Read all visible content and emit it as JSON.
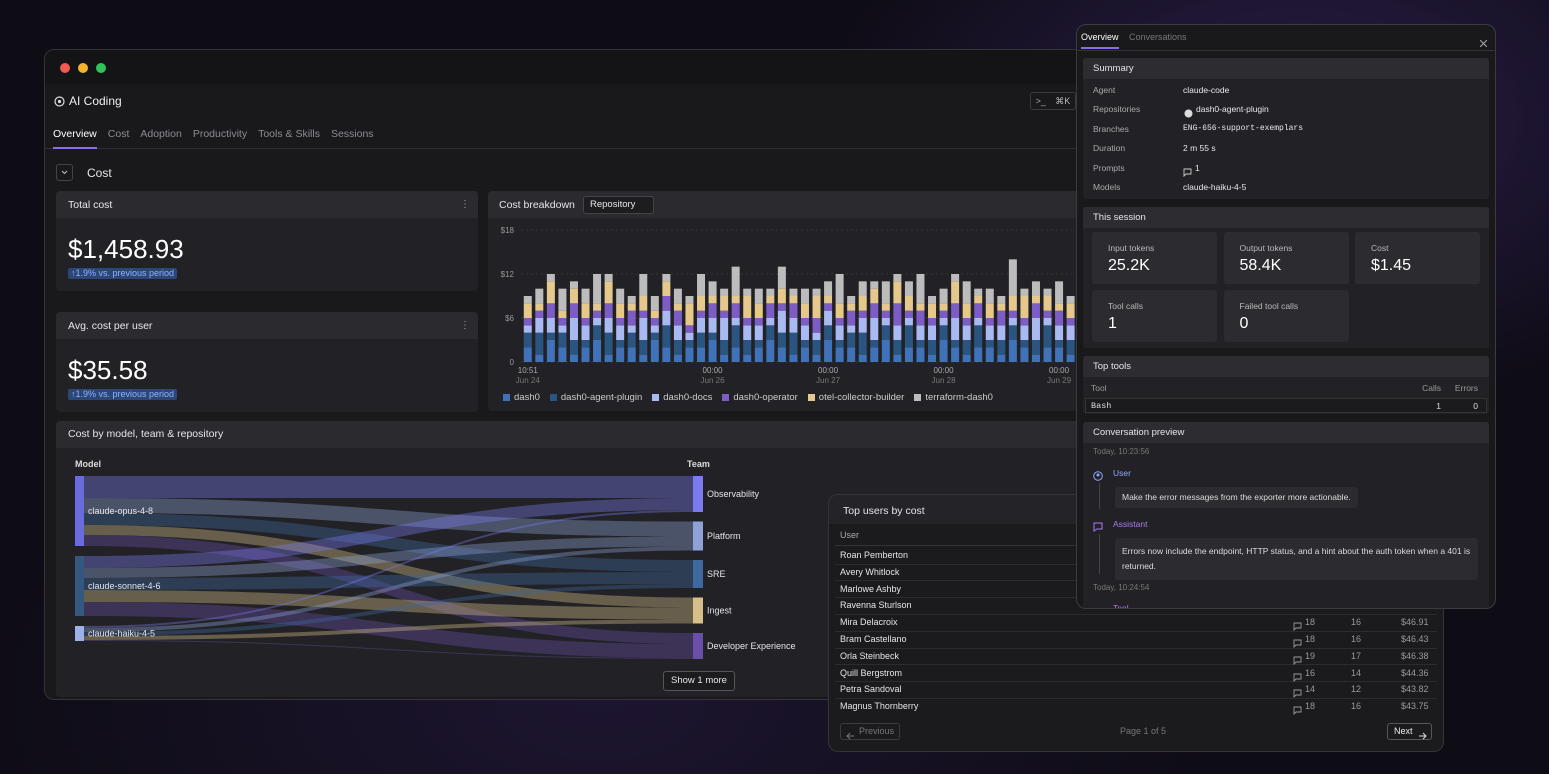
{
  "window": {
    "title": "AI Coding",
    "command_icon": ">_",
    "shortcut": "⌘K",
    "tabs": [
      "Overview",
      "Cost",
      "Adoption",
      "Productivity",
      "Tools & Skills",
      "Sessions"
    ]
  },
  "section": {
    "title": "Cost"
  },
  "kpis": [
    {
      "title": "Total cost",
      "value": "$1,458.93",
      "change": "↑1.9% vs. previous period"
    },
    {
      "title": "Avg. cost per user",
      "value": "$35.58",
      "change": "↑1.9% vs. previous period"
    }
  ],
  "chart_data": [
    {
      "type": "bar",
      "stacked": true,
      "title": "Cost breakdown",
      "group_by": "Repository",
      "categories": [
        {
          "time": "10:51",
          "date": "Jun 24"
        },
        null,
        null,
        null,
        null,
        null,
        null,
        null,
        null,
        null,
        null,
        null,
        null,
        null,
        null,
        null,
        {
          "time": "00:00",
          "date": "Jun 26"
        },
        null,
        null,
        null,
        null,
        null,
        null,
        null,
        null,
        null,
        {
          "time": "00:00",
          "date": "Jun 27"
        },
        null,
        null,
        null,
        null,
        null,
        null,
        null,
        null,
        null,
        {
          "time": "00:00",
          "date": "Jun 28"
        },
        null,
        null,
        null,
        null,
        null,
        null,
        null,
        null,
        null,
        {
          "time": "00:00",
          "date": "Jun 29"
        },
        null
      ],
      "series": [
        {
          "name": "dash0",
          "color": "#3f72b8",
          "values": [
            2,
            1,
            3,
            2,
            1,
            2,
            3,
            1,
            2,
            2,
            1,
            3,
            2,
            1,
            2,
            2,
            3,
            1,
            2,
            1,
            2,
            3,
            2,
            1,
            2,
            1,
            3,
            2,
            2,
            1,
            2,
            3,
            1,
            2,
            2,
            1,
            3,
            2,
            1,
            2,
            2,
            1,
            3,
            2,
            1,
            2,
            2,
            1
          ]
        },
        {
          "name": "dash0-agent-plugin",
          "color": "#2a5580",
          "values": [
            2,
            3,
            1,
            2,
            2,
            1,
            2,
            3,
            1,
            2,
            2,
            1,
            3,
            2,
            1,
            2,
            1,
            2,
            3,
            2,
            1,
            2,
            2,
            3,
            1,
            2,
            2,
            1,
            2,
            3,
            1,
            2,
            2,
            3,
            1,
            2,
            2,
            1,
            2,
            3,
            1,
            2,
            2,
            1,
            2,
            3,
            1,
            2
          ]
        },
        {
          "name": "dash0-docs",
          "color": "#a9b9f2",
          "values": [
            1,
            2,
            2,
            1,
            3,
            2,
            1,
            2,
            2,
            1,
            3,
            1,
            2,
            2,
            1,
            2,
            2,
            3,
            1,
            2,
            2,
            1,
            3,
            2,
            2,
            1,
            2,
            2,
            1,
            2,
            3,
            1,
            2,
            1,
            2,
            2,
            1,
            3,
            2,
            1,
            2,
            2,
            1,
            2,
            3,
            1,
            2,
            2
          ]
        },
        {
          "name": "dash0-operator",
          "color": "#7d5cc6",
          "values": [
            1,
            1,
            2,
            1,
            2,
            1,
            1,
            2,
            1,
            2,
            1,
            1,
            2,
            2,
            1,
            1,
            2,
            1,
            2,
            1,
            1,
            2,
            1,
            2,
            1,
            2,
            1,
            1,
            2,
            1,
            2,
            1,
            3,
            1,
            2,
            1,
            1,
            2,
            1,
            2,
            1,
            2,
            1,
            1,
            2,
            1,
            2,
            1
          ]
        },
        {
          "name": "otel-collector-builder",
          "color": "#e6c88c",
          "values": [
            2,
            1,
            3,
            1,
            2,
            2,
            1,
            3,
            2,
            1,
            2,
            1,
            2,
            1,
            3,
            2,
            1,
            2,
            1,
            3,
            2,
            1,
            2,
            1,
            2,
            3,
            1,
            2,
            1,
            2,
            2,
            1,
            3,
            2,
            1,
            2,
            1,
            3,
            2,
            1,
            2,
            1,
            2,
            3,
            1,
            2,
            1,
            2
          ]
        },
        {
          "name": "terraform-dash0",
          "color": "#bcbcbc",
          "values": [
            1,
            2,
            1,
            3,
            1,
            2,
            4,
            1,
            2,
            1,
            3,
            2,
            1,
            2,
            1,
            3,
            2,
            1,
            4,
            1,
            2,
            1,
            3,
            1,
            2,
            1,
            2,
            4,
            1,
            2,
            1,
            3,
            1,
            2,
            4,
            1,
            2,
            1,
            3,
            1,
            2,
            1,
            5,
            1,
            2,
            1,
            3,
            1
          ]
        }
      ],
      "ylim": [
        0,
        18
      ],
      "yticks": [
        0,
        {
          "value": 6,
          "label": "$6"
        },
        {
          "value": 12,
          "label": "$12"
        },
        {
          "value": 18,
          "label": "$18"
        }
      ],
      "grid": true
    },
    {
      "type": "sankey",
      "title": "Cost by model, team & repository",
      "column_labels": [
        "Model",
        "Team"
      ],
      "models": [
        {
          "name": "claude-opus-4-8",
          "value": 70,
          "color": "#6b6be0"
        },
        {
          "name": "claude-sonnet-4-6",
          "value": 60,
          "color": "#34587f"
        },
        {
          "name": "claude-haiku-4-5",
          "value": 15,
          "color": "#9cb0ea"
        }
      ],
      "teams": [
        {
          "name": "Observability",
          "value": 36,
          "color": "#7b7bef"
        },
        {
          "name": "Platform",
          "value": 29,
          "color": "#8ea2d8"
        },
        {
          "name": "SRE",
          "value": 28,
          "color": "#3d68a0"
        },
        {
          "name": "Ingest",
          "value": 26,
          "color": "#d8bf8a"
        },
        {
          "name": "Developer Experience",
          "value": 26,
          "color": "#6a4fa8"
        }
      ],
      "flows": [
        [
          22,
          15,
          12,
          10,
          11
        ],
        [
          12,
          10,
          12,
          12,
          14
        ],
        [
          2,
          4,
          4,
          4,
          1
        ]
      ],
      "more_button": "Show 1 more"
    }
  ],
  "top_users": {
    "title": "Top users by cost",
    "columns": [
      "User"
    ],
    "rows": [
      {
        "name": "Roan Pemberton"
      },
      {
        "name": "Avery Whitlock"
      },
      {
        "name": "Marlowe Ashby"
      },
      {
        "name": "Ravenna Sturlson"
      },
      {
        "name": "Mira Delacroix",
        "prompts": 18,
        "sessions": 16,
        "cost": "$46.91"
      },
      {
        "name": "Bram Castellano",
        "prompts": 18,
        "sessions": 16,
        "cost": "$46.43"
      },
      {
        "name": "Orla Steinbeck",
        "prompts": 19,
        "sessions": 17,
        "cost": "$46.38"
      },
      {
        "name": "Quill Bergstrom",
        "prompts": 16,
        "sessions": 14,
        "cost": "$44.36"
      },
      {
        "name": "Petra Sandoval",
        "prompts": 14,
        "sessions": 12,
        "cost": "$43.82"
      },
      {
        "name": "Magnus Thornberry",
        "prompts": 18,
        "sessions": 16,
        "cost": "$43.75"
      }
    ],
    "pagination": {
      "previous": "Previous",
      "page": "Page 1 of 5",
      "next": "Next"
    }
  },
  "session_panel": {
    "tabs": [
      "Overview",
      "Conversations"
    ],
    "summary": {
      "title": "Summary",
      "rows": [
        [
          "Agent",
          "claude-code"
        ],
        [
          "Repositories",
          "dash0-agent-plugin"
        ],
        [
          "Branches",
          "ENG-656-support-exemplars"
        ],
        [
          "Duration",
          "2 m 55 s"
        ],
        [
          "Prompts",
          1
        ],
        [
          "Models",
          "claude-haiku-4-5"
        ]
      ]
    },
    "this_session": {
      "title": "This session",
      "stats": [
        [
          "Input tokens",
          "25.2K"
        ],
        [
          "Output tokens",
          "58.4K"
        ],
        [
          "Cost",
          "$1.45"
        ],
        [
          "Tool calls",
          1
        ],
        [
          "Failed tool calls",
          0
        ]
      ]
    },
    "top_tools": {
      "title": "Top tools",
      "columns": [
        "Tool",
        "Calls",
        "Errors"
      ],
      "rows": [
        [
          "Bash",
          1,
          0
        ]
      ]
    },
    "conversation": {
      "title": "Conversation preview",
      "messages": [
        {
          "time": "Today, 10:23:56",
          "role": "User",
          "text": "Make the error messages from the exporter more actionable."
        },
        {
          "role": "Assistant",
          "text": "Errors now include the endpoint, HTTP status, and a hint about the auth token when a 401 is returned."
        },
        {
          "time": "Today, 10:24:54",
          "role": "Tool"
        }
      ]
    }
  }
}
